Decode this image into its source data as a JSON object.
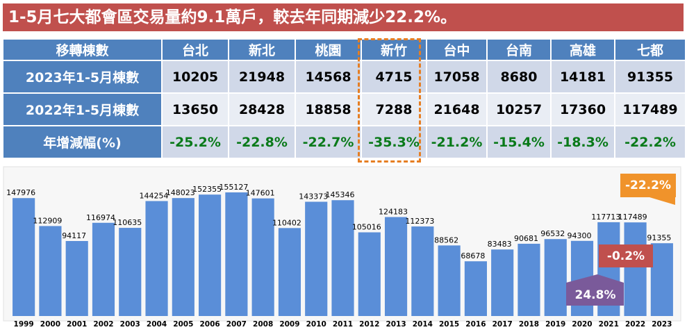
{
  "header": {
    "title": "1-5月七大都會區交易量約9.1萬戶，較去年同期減少22.2%。"
  },
  "table": {
    "columns": [
      "移轉棟數",
      "台北",
      "新北",
      "桃園",
      "新竹",
      "台中",
      "台南",
      "高雄",
      "七都"
    ],
    "rows": [
      [
        "2023年1-5月棟數",
        "10205",
        "21948",
        "14568",
        "4715",
        "17058",
        "8680",
        "14181",
        "91355"
      ],
      [
        "2022年1-5月棟數",
        "13650",
        "28428",
        "18858",
        "7288",
        "21648",
        "10257",
        "17360",
        "117489"
      ],
      [
        "年增減幅(%)",
        "-25.2%",
        "-22.8%",
        "-22.7%",
        "-35.3%",
        "-21.2%",
        "-15.4%",
        "-18.3%",
        "-22.2%"
      ]
    ]
  },
  "chart_data": {
    "type": "bar",
    "categories": [
      "1999",
      "2000",
      "2001",
      "2002",
      "2003",
      "2004",
      "2005",
      "2006",
      "2007",
      "2008",
      "2009",
      "2010",
      "2011",
      "2012",
      "2013",
      "2014",
      "2015",
      "2016",
      "2017",
      "2018",
      "2019",
      "2020",
      "2021",
      "2022",
      "2023"
    ],
    "values": [
      147976,
      112909,
      94117,
      116974,
      110635,
      144254,
      148023,
      152355,
      155127,
      147601,
      110402,
      143373,
      145346,
      105016,
      124183,
      112373,
      88562,
      68678,
      83483,
      90681,
      96532,
      94300,
      117713,
      117489,
      91355
    ],
    "color": "#5a8ed8",
    "annotations": [
      "-22.2%",
      "-0.2%",
      "24.8%"
    ]
  }
}
